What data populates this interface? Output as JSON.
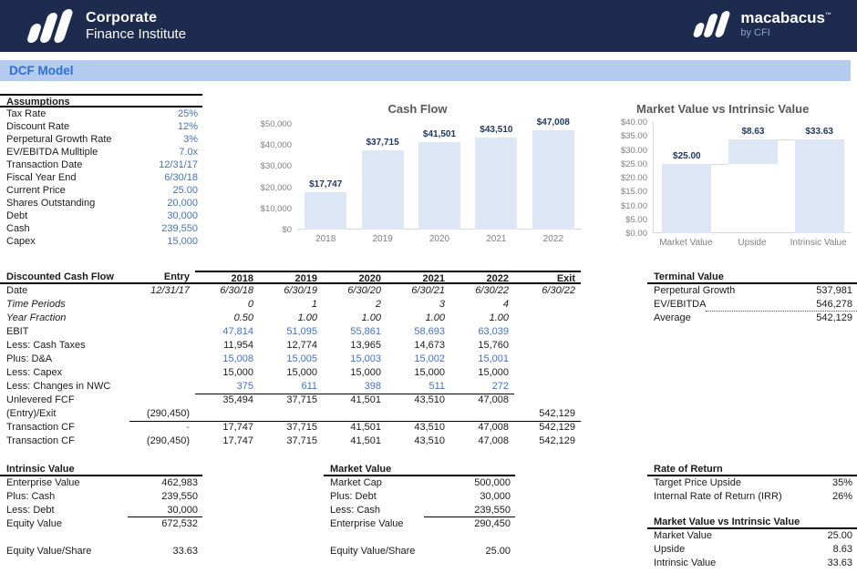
{
  "brand": {
    "name_line1": "Corporate",
    "name_line2": "Finance Institute",
    "partner": "macabacus",
    "partner_tm": "™",
    "partner_sub": "by CFI"
  },
  "page_title": "DCF Model",
  "colors": {
    "header_navy": "#1c2b4e",
    "titlebar_bg": "#b4cbee",
    "titlebar_text": "#2e6fd6",
    "input_blue": "#4472c4",
    "bar_fill": "#dce6f5",
    "chart_label_navy": "#1f3864"
  },
  "assumptions": {
    "title": "Assumptions",
    "rows": [
      {
        "label": "Tax Rate",
        "value": "25%"
      },
      {
        "label": "Discount Rate",
        "value": "12%"
      },
      {
        "label": "Perpetural Growth Rate",
        "value": "3%"
      },
      {
        "label": "EV/EBITDA Mulltiple",
        "value": "7.0x"
      },
      {
        "label": "Transaction Date",
        "value": "12/31/17"
      },
      {
        "label": "Fiscal Year End",
        "value": "6/30/18"
      },
      {
        "label": "Current Price",
        "value": "25.00"
      },
      {
        "label": "Shares Outstanding",
        "value": "20,000"
      },
      {
        "label": "Debt",
        "value": "30,000"
      },
      {
        "label": "Cash",
        "value": "239,550"
      },
      {
        "label": "Capex",
        "value": "15,000"
      }
    ]
  },
  "chart_data": [
    {
      "type": "bar",
      "title": "Cash Flow",
      "categories": [
        "2018",
        "2019",
        "2020",
        "2021",
        "2022"
      ],
      "values": [
        17747,
        37715,
        41501,
        43510,
        47008
      ],
      "labels": [
        "$17,747",
        "$37,715",
        "$41,501",
        "$43,510",
        "$47,008"
      ],
      "ylim": [
        0,
        50000
      ],
      "yticks": [
        {
          "v": 0,
          "t": "$0"
        },
        {
          "v": 10000,
          "t": "$10,000"
        },
        {
          "v": 20000,
          "t": "$20,000"
        },
        {
          "v": 30000,
          "t": "$30,000"
        },
        {
          "v": 40000,
          "t": "$40,000"
        },
        {
          "v": 50000,
          "t": "$50,000"
        }
      ],
      "grid": false,
      "legend": "none"
    },
    {
      "type": "waterfall",
      "title": "Market Value vs Intrinsic Value",
      "categories": [
        "Market Value",
        "Upside",
        "Intrinsic Value"
      ],
      "bases": [
        0,
        25.0,
        0
      ],
      "tops": [
        25.0,
        33.63,
        33.63
      ],
      "values": [
        25.0,
        8.63,
        33.63
      ],
      "labels": [
        "$25.00",
        "$8.63",
        "$33.63"
      ],
      "ylim": [
        0,
        40
      ],
      "yticks": [
        {
          "v": 0,
          "t": "$0.00"
        },
        {
          "v": 5,
          "t": "$5.00"
        },
        {
          "v": 10,
          "t": "$10.00"
        },
        {
          "v": 15,
          "t": "$15.00"
        },
        {
          "v": 20,
          "t": "$20.00"
        },
        {
          "v": 25,
          "t": "$25.00"
        },
        {
          "v": 30,
          "t": "$30.00"
        },
        {
          "v": 35,
          "t": "$35.00"
        },
        {
          "v": 40,
          "t": "$40.00"
        }
      ],
      "grid": false,
      "legend": "none"
    }
  ],
  "dcf": {
    "title": "Discounted Cash Flow",
    "columns": [
      "Entry",
      "2018",
      "2019",
      "2020",
      "2021",
      "2022",
      "Exit"
    ],
    "rows": [
      {
        "label": "Date",
        "cells": [
          "12/31/17",
          "6/30/18",
          "6/30/19",
          "6/30/20",
          "6/30/21",
          "6/30/22",
          "6/30/22"
        ]
      },
      {
        "label": "Time Periods",
        "cells": [
          "",
          "0",
          "1",
          "2",
          "3",
          "4",
          ""
        ]
      },
      {
        "label": "Year Fraction",
        "cells": [
          "",
          "0.50",
          "1.00",
          "1.00",
          "1.00",
          "1.00",
          ""
        ]
      },
      {
        "label": "EBIT",
        "cells": [
          "",
          "47,814",
          "51,095",
          "55,861",
          "58,693",
          "63,039",
          ""
        ]
      },
      {
        "label": "Less: Cash Taxes",
        "cells": [
          "",
          "11,954",
          "12,774",
          "13,965",
          "14,673",
          "15,760",
          ""
        ]
      },
      {
        "label": "Plus: D&A",
        "cells": [
          "",
          "15,008",
          "15,005",
          "15,003",
          "15,002",
          "15,001",
          ""
        ]
      },
      {
        "label": "Less: Capex",
        "cells": [
          "",
          "15,000",
          "15,000",
          "15,000",
          "15,000",
          "15,000",
          ""
        ]
      },
      {
        "label": "Less: Changes in NWC",
        "cells": [
          "",
          "375",
          "611",
          "398",
          "511",
          "272",
          ""
        ]
      },
      {
        "label": "Unlevered FCF",
        "cells": [
          "",
          "35,494",
          "37,715",
          "41,501",
          "43,510",
          "47,008",
          ""
        ]
      },
      {
        "label": "(Entry)/Exit",
        "cells": [
          "(290,450)",
          "",
          "",
          "",
          "",
          "",
          "542,129"
        ]
      },
      {
        "label": "Transaction CF",
        "cells": [
          "-",
          "17,747",
          "37,715",
          "41,501",
          "43,510",
          "47,008",
          "542,129"
        ]
      },
      {
        "label": "Transaction CF",
        "cells": [
          "(290,450)",
          "17,747",
          "37,715",
          "41,501",
          "43,510",
          "47,008",
          "542,129"
        ]
      }
    ]
  },
  "terminal_value": {
    "title": "Terminal Value",
    "rows": [
      {
        "label": "Perpetural Growth",
        "value": "537,981"
      },
      {
        "label": "EV/EBITDA",
        "value": "546,278"
      },
      {
        "label": "Average",
        "value": "542,129"
      }
    ]
  },
  "intrinsic_value": {
    "title": "Intrinsic Value",
    "rows": [
      {
        "label": "Enterprise Value",
        "value": "462,983"
      },
      {
        "label": "Plus: Cash",
        "value": "239,550"
      },
      {
        "label": "Less: Debt",
        "value": "30,000"
      },
      {
        "label": "Equity Value",
        "value": "672,532"
      }
    ],
    "share_label": "Equity Value/Share",
    "share_value": "33.63"
  },
  "market_value": {
    "title": "Market Value",
    "rows": [
      {
        "label": "Market Cap",
        "value": "500,000"
      },
      {
        "label": "Plus: Debt",
        "value": "30,000"
      },
      {
        "label": "Less: Cash",
        "value": "239,550"
      },
      {
        "label": "Enterprise Value",
        "value": "290,450"
      }
    ],
    "share_label": "Equity Value/Share",
    "share_value": "25.00"
  },
  "rate_of_return": {
    "title": "Rate of Return",
    "rows": [
      {
        "label": "Target Price Upside",
        "value": "35%"
      },
      {
        "label": "Internal Rate of Return (IRR)",
        "value": "26%"
      }
    ]
  },
  "mv_vs_iv": {
    "title": "Market Value vs Intrinsic Value",
    "rows": [
      {
        "label": "Market Value",
        "value": "25.00"
      },
      {
        "label": "Upside",
        "value": "8.63"
      },
      {
        "label": "Intrinsic Value",
        "value": "33.63"
      }
    ]
  }
}
